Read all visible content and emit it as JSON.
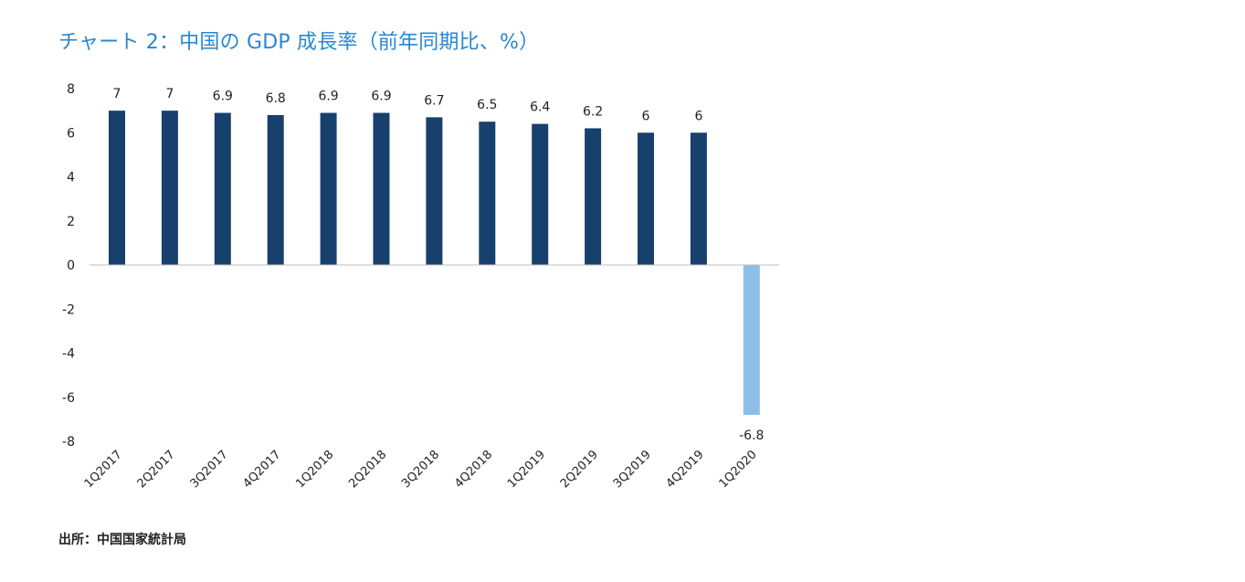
{
  "chart_data": {
    "type": "bar",
    "title": "チャート 2：中国の GDP 成長率（前年同期比、%）",
    "categories": [
      "1Q2017",
      "2Q2017",
      "3Q2017",
      "4Q2017",
      "1Q2018",
      "2Q2018",
      "3Q2018",
      "4Q2018",
      "1Q2019",
      "2Q2019",
      "3Q2019",
      "4Q2019",
      "1Q2020"
    ],
    "values": [
      7,
      7,
      6.9,
      6.8,
      6.9,
      6.9,
      6.7,
      6.5,
      6.4,
      6.2,
      6,
      6,
      -6.8
    ],
    "data_labels": [
      "7",
      "7",
      "6.9",
      "6.8",
      "6.9",
      "6.9",
      "6.7",
      "6.5",
      "6.4",
      "6.2",
      "6",
      "6",
      "-6.8"
    ],
    "y_ticks": [
      8,
      6,
      4,
      2,
      0,
      -2,
      -4,
      -6,
      -8
    ],
    "ylim": [
      -8,
      8
    ],
    "xlabel": "",
    "ylabel": "",
    "grid": false,
    "legend": "none",
    "colors": {
      "positive": "#17406d",
      "highlight": "#8dbde9",
      "axis": "#bfbfbf",
      "title": "#2a87d0"
    },
    "source": "出所：中国国家統計局"
  }
}
